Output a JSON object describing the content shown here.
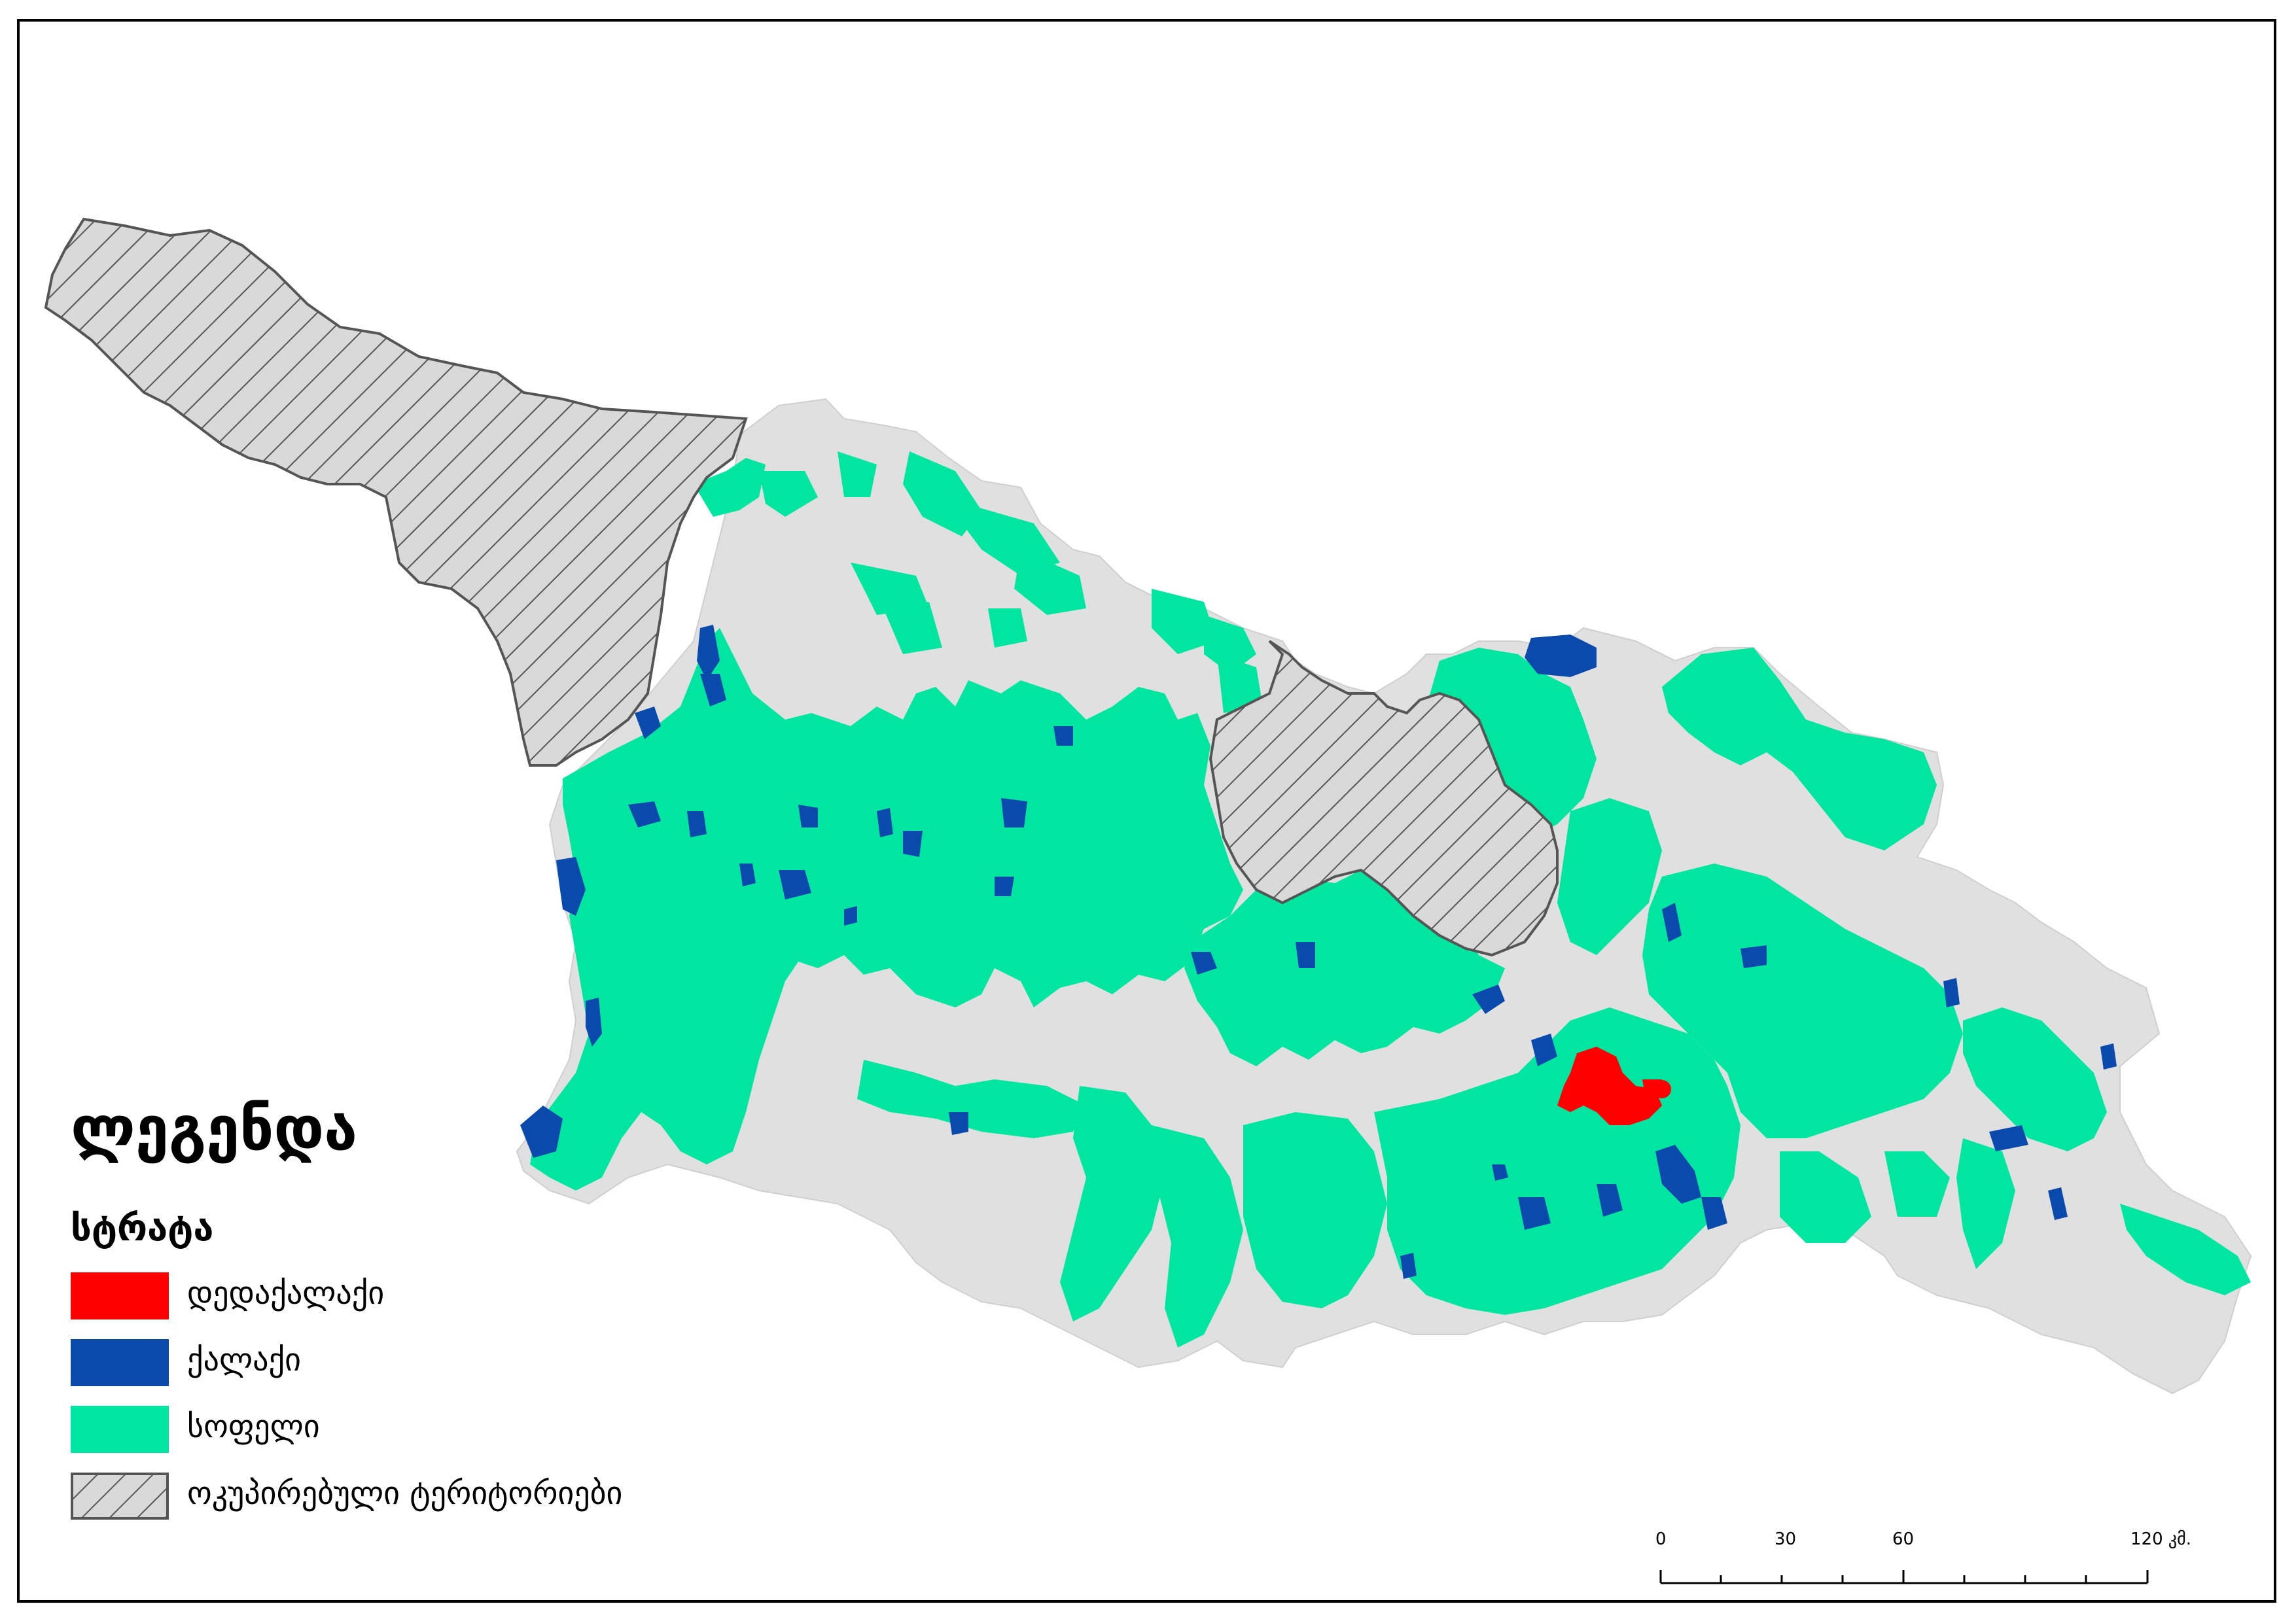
{
  "legend": {
    "title": "ლეგენდა",
    "subtitle": "სტრატა",
    "items": [
      {
        "label": "დედაქალაქი",
        "color": "#ff0000",
        "pattern": "solid"
      },
      {
        "label": "ქალაქი",
        "color": "#0a4aad",
        "pattern": "solid"
      },
      {
        "label": "სოფელი",
        "color": "#00e6a0",
        "pattern": "solid"
      },
      {
        "label": "ოკუპირებული ტერიტორიები",
        "color": "#d9d9d9",
        "pattern": "hatch"
      }
    ]
  },
  "scale": {
    "ticks": [
      "0",
      "30",
      "60",
      "120 კმ."
    ]
  },
  "colors": {
    "country_base": "#e0e0e0",
    "rural": "#00e6a0",
    "city": "#0a4aad",
    "capital": "#ff0000",
    "occupied": "#d9d9d9"
  }
}
